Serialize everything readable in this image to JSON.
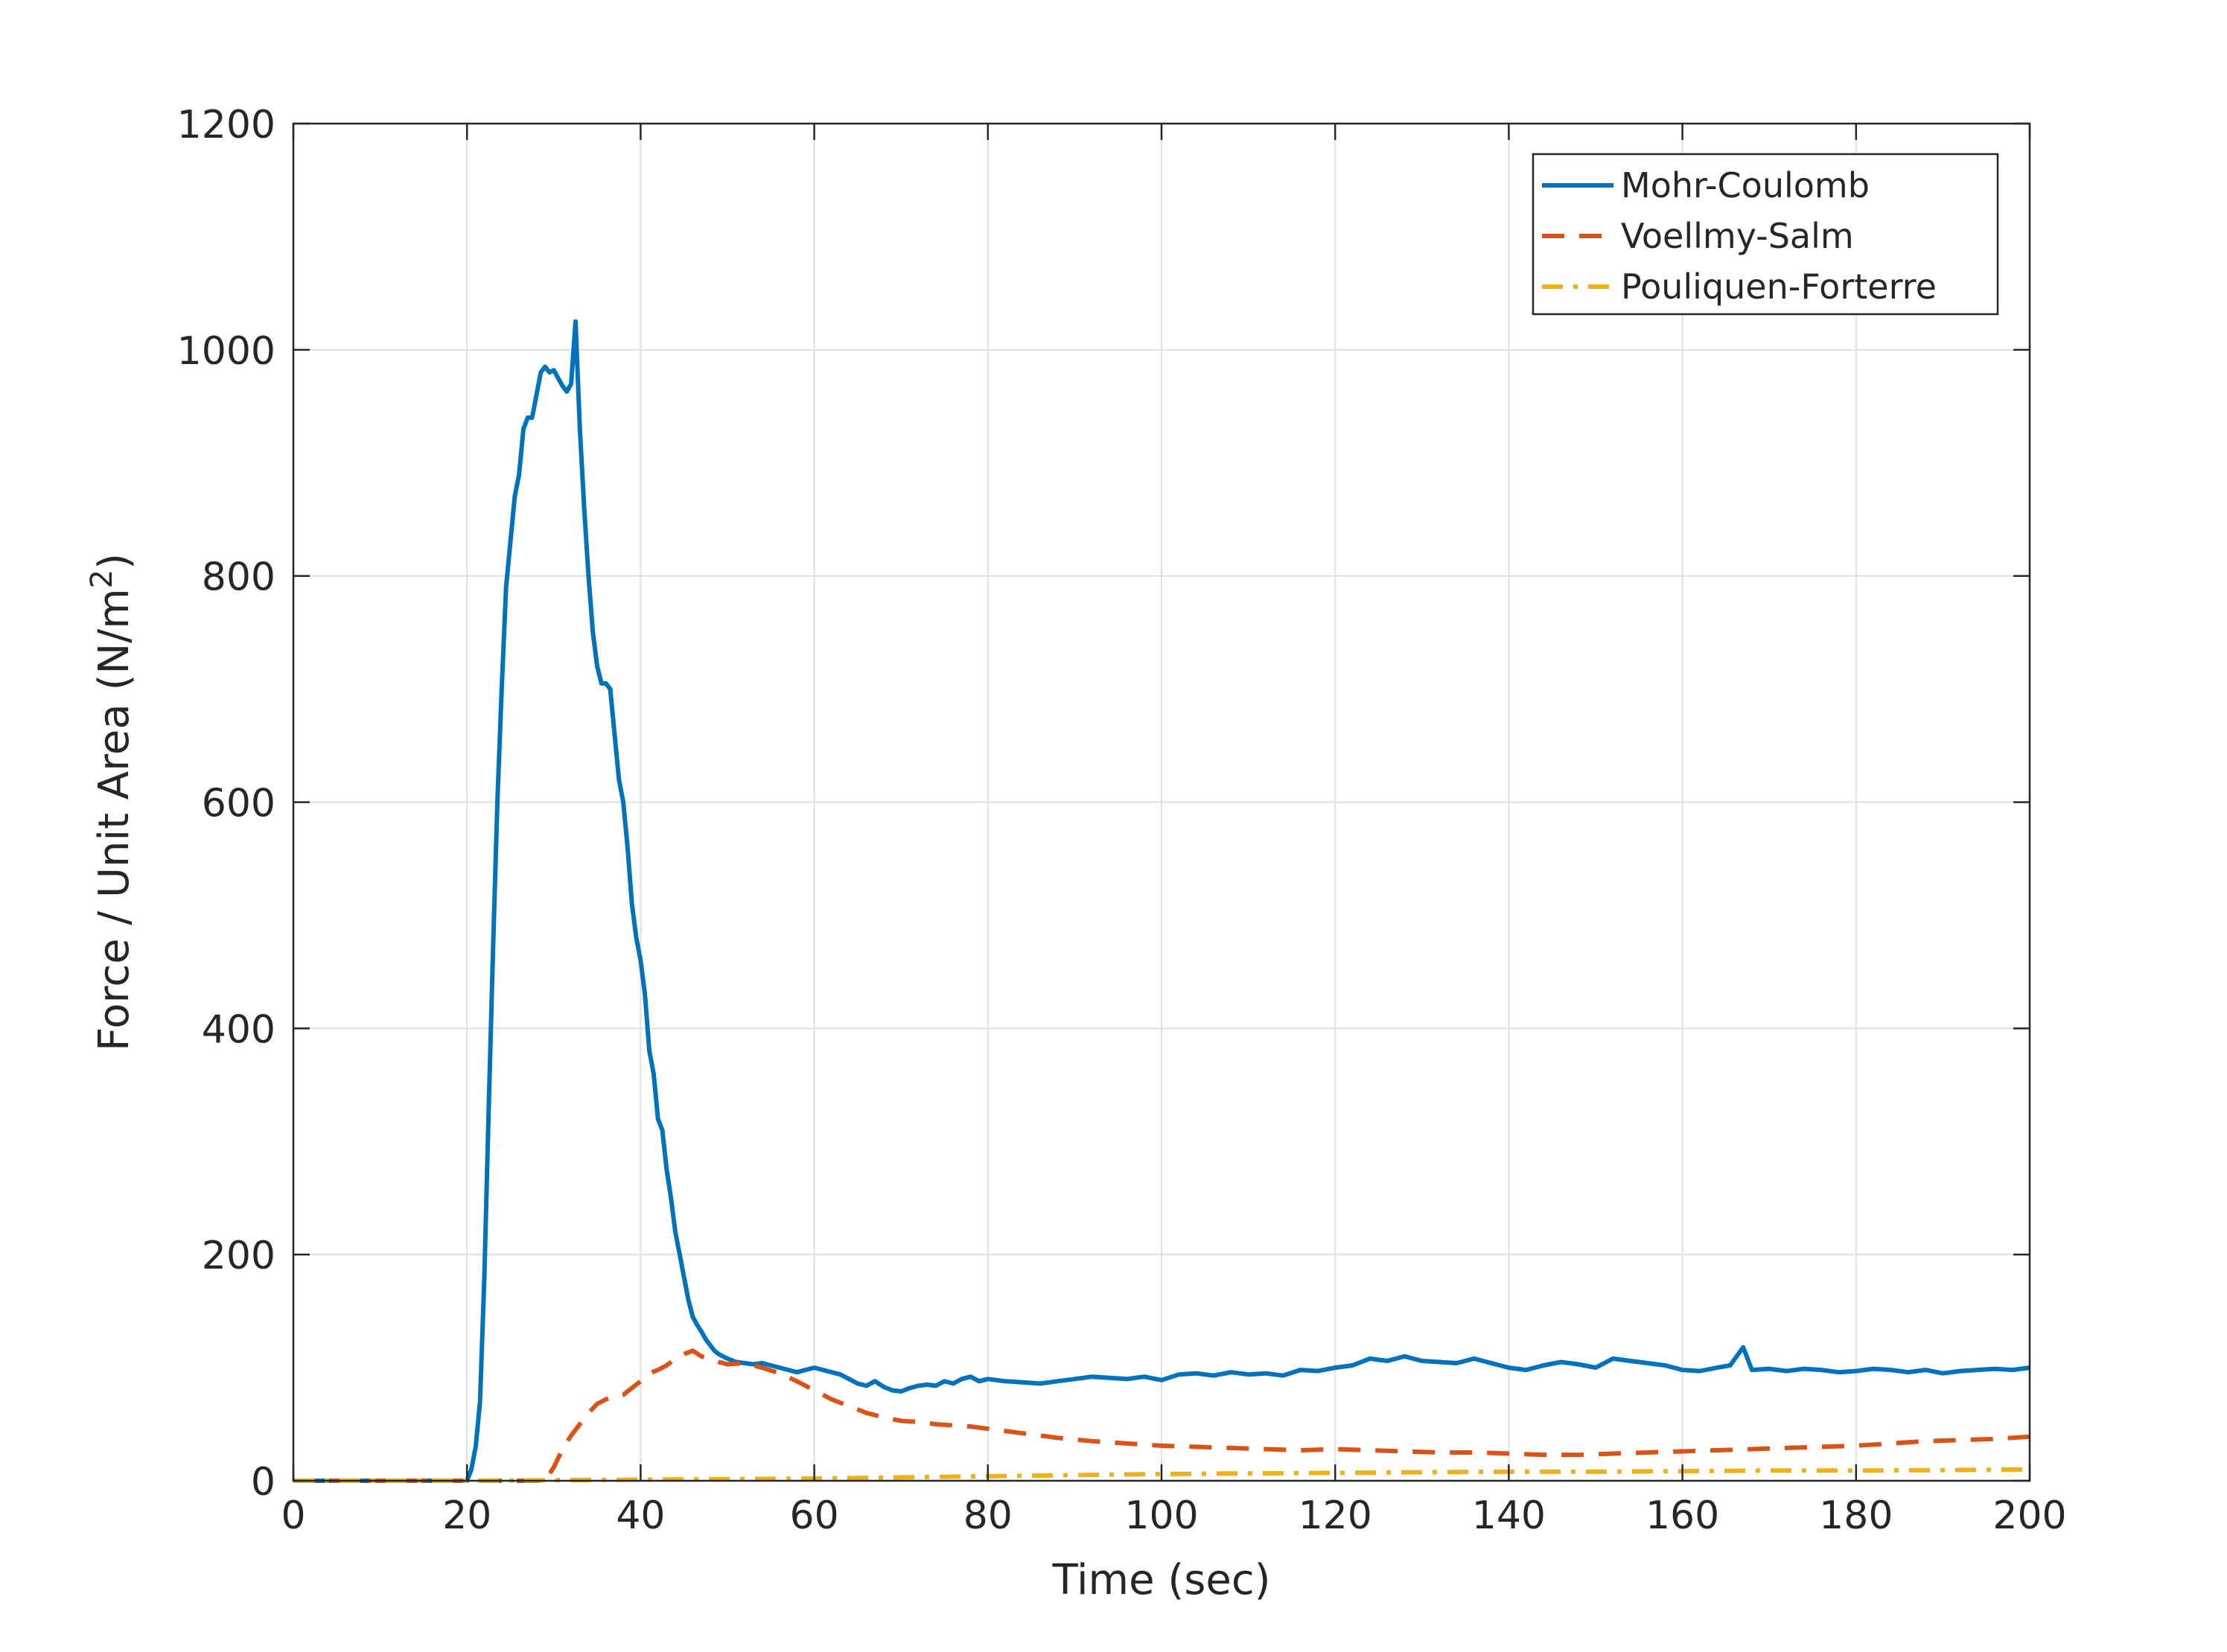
{
  "chart_data": {
    "type": "line",
    "xlabel": "Time (sec)",
    "ylabel": "Force / Unit Area (N/m",
    "ylabel_sup": "2",
    "ylabel_end": ")",
    "xlim": [
      0,
      200
    ],
    "ylim": [
      0,
      1200
    ],
    "xticks": [
      0,
      20,
      40,
      60,
      80,
      100,
      120,
      140,
      160,
      180,
      200
    ],
    "yticks": [
      0,
      200,
      400,
      600,
      800,
      1000,
      1200
    ],
    "grid": true,
    "legend_position": "top-right",
    "series": [
      {
        "name": "Mohr-Coulomb",
        "color": "#0072BD",
        "style": "solid",
        "x": [
          0,
          20,
          20.5,
          21,
          21.5,
          22,
          22.5,
          23,
          23.5,
          24,
          24.5,
          25,
          25.5,
          26,
          26.5,
          27,
          27.5,
          28,
          28.5,
          29,
          29.5,
          30,
          30.5,
          31,
          31.5,
          32,
          32.5,
          33,
          33.5,
          34,
          34.5,
          35,
          35.5,
          36,
          36.5,
          37,
          37.5,
          38,
          38.5,
          39,
          39.5,
          40,
          40.5,
          41,
          41.5,
          42,
          42.5,
          43,
          43.5,
          44,
          44.5,
          45,
          45.5,
          46,
          46.5,
          47,
          47.5,
          48,
          48.5,
          49,
          50,
          51,
          52,
          53,
          54,
          55,
          56,
          57,
          58,
          59,
          60,
          61,
          62,
          63,
          64,
          65,
          66,
          67,
          68,
          69,
          70,
          71,
          72,
          73,
          74,
          75,
          76,
          77,
          78,
          79,
          80,
          82,
          84,
          86,
          88,
          90,
          92,
          94,
          96,
          98,
          100,
          102,
          104,
          106,
          108,
          110,
          112,
          114,
          116,
          118,
          120,
          122,
          124,
          126,
          128,
          130,
          132,
          134,
          136,
          138,
          140,
          142,
          144,
          146,
          148,
          150,
          152,
          154,
          156,
          158,
          160,
          162,
          164,
          165.5,
          167,
          168,
          170,
          172,
          174,
          176,
          178,
          180,
          182,
          184,
          186,
          188,
          190,
          192,
          194,
          196,
          198,
          200
        ],
        "values": [
          0,
          0,
          10,
          30,
          70,
          180,
          330,
          470,
          600,
          700,
          790,
          830,
          870,
          890,
          930,
          940,
          940,
          960,
          980,
          985,
          980,
          982,
          975,
          968,
          963,
          970,
          1025,
          930,
          860,
          800,
          750,
          720,
          705,
          705,
          700,
          660,
          620,
          600,
          560,
          510,
          480,
          460,
          430,
          380,
          360,
          320,
          310,
          275,
          250,
          220,
          200,
          180,
          160,
          145,
          138,
          132,
          125,
          120,
          115,
          112,
          108,
          105,
          104,
          103,
          104,
          102,
          100,
          98,
          96,
          98,
          100,
          98,
          96,
          94,
          90,
          86,
          84,
          88,
          83,
          80,
          79,
          82,
          84,
          85,
          84,
          88,
          86,
          90,
          92,
          88,
          90,
          88,
          87,
          86,
          88,
          90,
          92,
          91,
          90,
          92,
          89,
          94,
          95,
          93,
          96,
          94,
          95,
          93,
          98,
          97,
          100,
          102,
          108,
          106,
          110,
          106,
          105,
          104,
          108,
          104,
          100,
          98,
          102,
          105,
          103,
          100,
          108,
          106,
          104,
          102,
          98,
          97,
          100,
          102,
          118,
          98,
          99,
          97,
          99,
          98,
          96,
          97,
          99,
          98,
          96,
          98,
          95,
          97,
          98,
          99,
          98,
          100
        ]
      },
      {
        "name": "Voellmy-Salm",
        "color": "#D95319",
        "style": "dashed",
        "x": [
          0,
          29,
          30,
          31,
          32,
          33,
          34,
          35,
          36,
          37,
          38,
          39,
          40,
          41,
          42,
          43,
          44,
          45,
          46,
          47,
          48,
          49,
          50,
          52,
          54,
          56,
          58,
          60,
          62,
          64,
          66,
          68,
          70,
          72,
          74,
          76,
          78,
          80,
          84,
          88,
          92,
          96,
          100,
          104,
          108,
          112,
          116,
          120,
          124,
          128,
          132,
          136,
          140,
          144,
          148,
          152,
          156,
          160,
          164,
          168,
          172,
          176,
          180,
          184,
          188,
          192,
          196,
          200
        ],
        "values": [
          0,
          0,
          12,
          28,
          40,
          50,
          60,
          68,
          72,
          75,
          76,
          82,
          88,
          95,
          98,
          102,
          108,
          112,
          115,
          110,
          108,
          105,
          103,
          104,
          100,
          95,
          88,
          80,
          72,
          66,
          60,
          56,
          53,
          52,
          50,
          49,
          48,
          46,
          42,
          38,
          35,
          33,
          31,
          30,
          29,
          28,
          27,
          28,
          27,
          26,
          25,
          25,
          24,
          23,
          23,
          24,
          25,
          26,
          27,
          28,
          29,
          30,
          31,
          33,
          35,
          36,
          37,
          39
        ]
      },
      {
        "name": "Pouliquen-Forterre",
        "color": "#EDB120",
        "style": "dashdot",
        "x": [
          0,
          20,
          30,
          40,
          50,
          60,
          70,
          80,
          90,
          100,
          110,
          120,
          130,
          140,
          150,
          160,
          170,
          180,
          190,
          200
        ],
        "values": [
          0,
          0,
          0.5,
          1,
          1.5,
          2,
          3,
          4,
          5,
          6,
          6.5,
          7,
          7.5,
          8,
          8,
          8.5,
          9,
          9,
          9.5,
          10
        ]
      }
    ]
  }
}
